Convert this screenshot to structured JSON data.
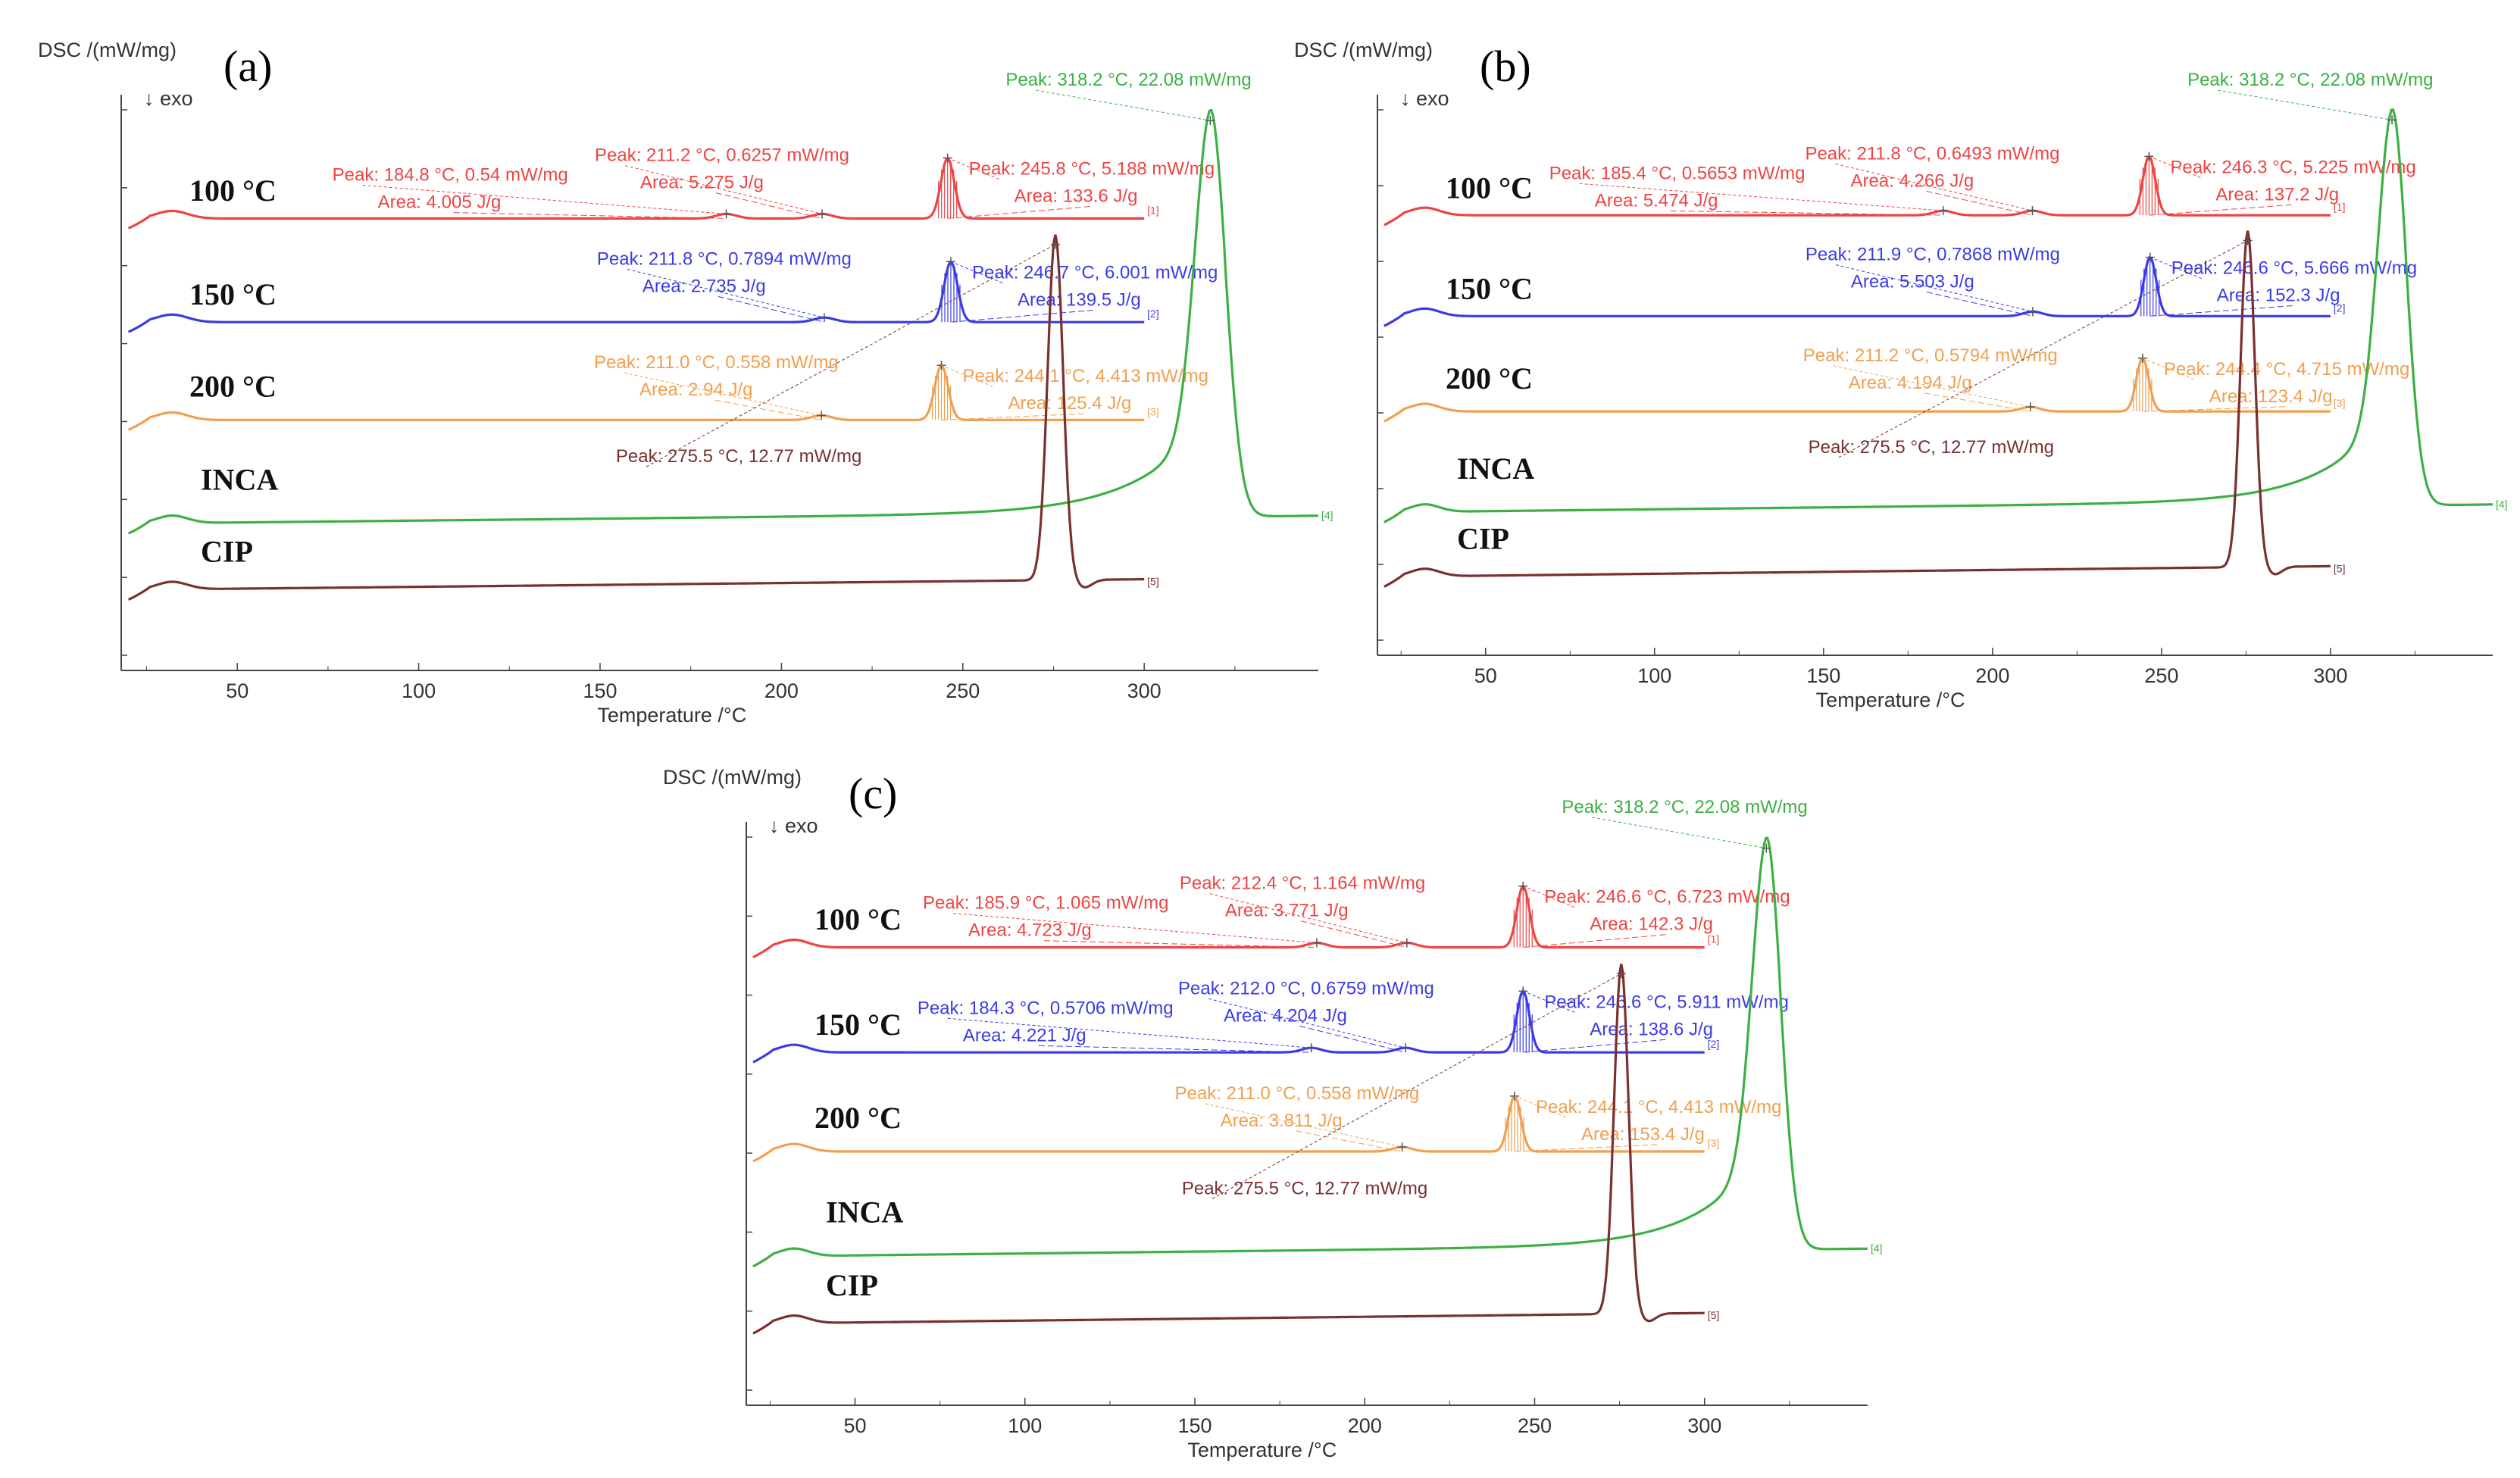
{
  "chart_data": [
    {
      "panel": "(a)",
      "type": "line",
      "ylabel": "DSC /(mW/mg)",
      "exo_label": "↓ exo",
      "xlabel": "Temperature /°C",
      "x_ticks": [
        "50",
        "100",
        "150",
        "200",
        "250",
        "300"
      ],
      "xlim": [
        18,
        348
      ],
      "series": [
        {
          "name": "100 °C",
          "color": "#ee4444",
          "peaks": [
            {
              "t": 184.8,
              "peak_text": "Peak: 184.8 °C, 0.54 mW/mg",
              "area_text": "Area: 4.005 J/g"
            },
            {
              "t": 211.2,
              "peak_text": "Peak: 211.2 °C, 0.6257 mW/mg",
              "area_text": "Area: 5.275 J/g"
            },
            {
              "t": 245.8,
              "peak_text": "Peak: 245.8 °C, 5.188 mW/mg",
              "area_text": "Area: 133.6 J/g"
            }
          ]
        },
        {
          "name": "150 °C",
          "color": "#3b3be6",
          "peaks": [
            {
              "t": 211.8,
              "peak_text": "Peak: 211.8 °C, 0.7894 mW/mg",
              "area_text": "Area: 2.735 J/g"
            },
            {
              "t": 246.7,
              "peak_text": "Peak: 246.7 °C, 6.001 mW/mg",
              "area_text": "Area: 139.5 J/g"
            }
          ]
        },
        {
          "name": "200 °C",
          "color": "#f0a050",
          "peaks": [
            {
              "t": 211.0,
              "peak_text": "Peak: 211.0 °C, 0.558 mW/mg",
              "area_text": "Area: 2.94 J/g"
            },
            {
              "t": 244.1,
              "peak_text": "Peak: 244.1 °C, 4.413 mW/mg",
              "area_text": "Area: 125.4 J/g"
            }
          ]
        },
        {
          "name": "INCA",
          "color": "#3cb043",
          "peaks": [
            {
              "t": 318.2,
              "peak_text": "Peak: 318.2 °C, 22.08 mW/mg"
            }
          ]
        },
        {
          "name": "CIP",
          "color": "#7a3030",
          "peaks": [
            {
              "t": 275.5,
              "peak_text": "Peak: 275.5 °C, 12.77 mW/mg"
            }
          ]
        }
      ]
    },
    {
      "panel": "(b)",
      "type": "line",
      "ylabel": "DSC /(mW/mg)",
      "exo_label": "↓ exo",
      "xlabel": "Temperature /°C",
      "x_ticks": [
        "50",
        "100",
        "150",
        "200",
        "250",
        "300"
      ],
      "xlim": [
        18,
        348
      ],
      "series": [
        {
          "name": "100 °C",
          "color": "#ee4444",
          "peaks": [
            {
              "t": 185.4,
              "peak_text": "Peak: 185.4 °C, 0.5653 mW/mg",
              "area_text": "Area: 5.474 J/g"
            },
            {
              "t": 211.8,
              "peak_text": "Peak: 211.8 °C, 0.6493 mW/mg",
              "area_text": "Area: 4.266 J/g"
            },
            {
              "t": 246.3,
              "peak_text": "Peak: 246.3 °C, 5.225 mW/mg",
              "area_text": "Area: 137.2 J/g"
            }
          ]
        },
        {
          "name": "150 °C",
          "color": "#3b3be6",
          "peaks": [
            {
              "t": 211.9,
              "peak_text": "Peak: 211.9 °C, 0.7868 mW/mg",
              "area_text": "Area: 5.503 J/g"
            },
            {
              "t": 246.6,
              "peak_text": "Peak: 246.6 °C, 5.666 mW/mg",
              "area_text": "Area: 152.3 J/g"
            }
          ]
        },
        {
          "name": "200 °C",
          "color": "#f0a050",
          "peaks": [
            {
              "t": 211.2,
              "peak_text": "Peak: 211.2 °C, 0.5794 mW/mg",
              "area_text": "Area: 4.194 J/g"
            },
            {
              "t": 244.4,
              "peak_text": "Peak: 244.4 °C, 4.715 mW/mg",
              "area_text": "Area: 123.4 J/g"
            }
          ]
        },
        {
          "name": "INCA",
          "color": "#3cb043",
          "peaks": [
            {
              "t": 318.2,
              "peak_text": "Peak: 318.2 °C, 22.08 mW/mg"
            }
          ]
        },
        {
          "name": "CIP",
          "color": "#7a3030",
          "peaks": [
            {
              "t": 275.5,
              "peak_text": "Peak: 275.5 °C, 12.77 mW/mg"
            }
          ]
        }
      ]
    },
    {
      "panel": "(c)",
      "type": "line",
      "ylabel": "DSC /(mW/mg)",
      "exo_label": "↓ exo",
      "xlabel": "Temperature /°C",
      "x_ticks": [
        "50",
        "100",
        "150",
        "200",
        "250",
        "300"
      ],
      "xlim": [
        18,
        348
      ],
      "series": [
        {
          "name": "100 °C",
          "color": "#ee4444",
          "peaks": [
            {
              "t": 185.9,
              "peak_text": "Peak: 185.9 °C, 1.065 mW/mg",
              "area_text": "Area: 4.723 J/g"
            },
            {
              "t": 212.4,
              "peak_text": "Peak: 212.4 °C, 1.164 mW/mg",
              "area_text": "Area: 3.771 J/g"
            },
            {
              "t": 246.6,
              "peak_text": "Peak: 246.6 °C, 6.723 mW/mg",
              "area_text": "Area: 142.3 J/g"
            }
          ]
        },
        {
          "name": "150 °C",
          "color": "#3b3be6",
          "peaks": [
            {
              "t": 184.3,
              "peak_text": "Peak: 184.3 °C, 0.5706 mW/mg",
              "area_text": "Area: 4.221 J/g"
            },
            {
              "t": 212.0,
              "peak_text": "Peak: 212.0 °C, 0.6759 mW/mg",
              "area_text": "Area: 4.204 J/g"
            },
            {
              "t": 246.6,
              "peak_text": "Peak: 246.6 °C, 5.911 mW/mg",
              "area_text": "Area: 138.6 J/g"
            }
          ]
        },
        {
          "name": "200 °C",
          "color": "#f0a050",
          "peaks": [
            {
              "t": 211.0,
              "peak_text": "Peak: 211.0 °C, 0.558 mW/mg",
              "area_text": "Area: 3.811 J/g"
            },
            {
              "t": 244.1,
              "peak_text": "Peak: 244.1 °C, 4.413 mW/mg",
              "area_text": "Area: 153.4 J/g"
            }
          ]
        },
        {
          "name": "INCA",
          "color": "#3cb043",
          "peaks": [
            {
              "t": 318.2,
              "peak_text": "Peak: 318.2 °C, 22.08 mW/mg"
            }
          ]
        },
        {
          "name": "CIP",
          "color": "#7a3030",
          "peaks": [
            {
              "t": 275.5,
              "peak_text": "Peak: 275.5 °C, 12.77 mW/mg"
            }
          ]
        }
      ]
    }
  ]
}
